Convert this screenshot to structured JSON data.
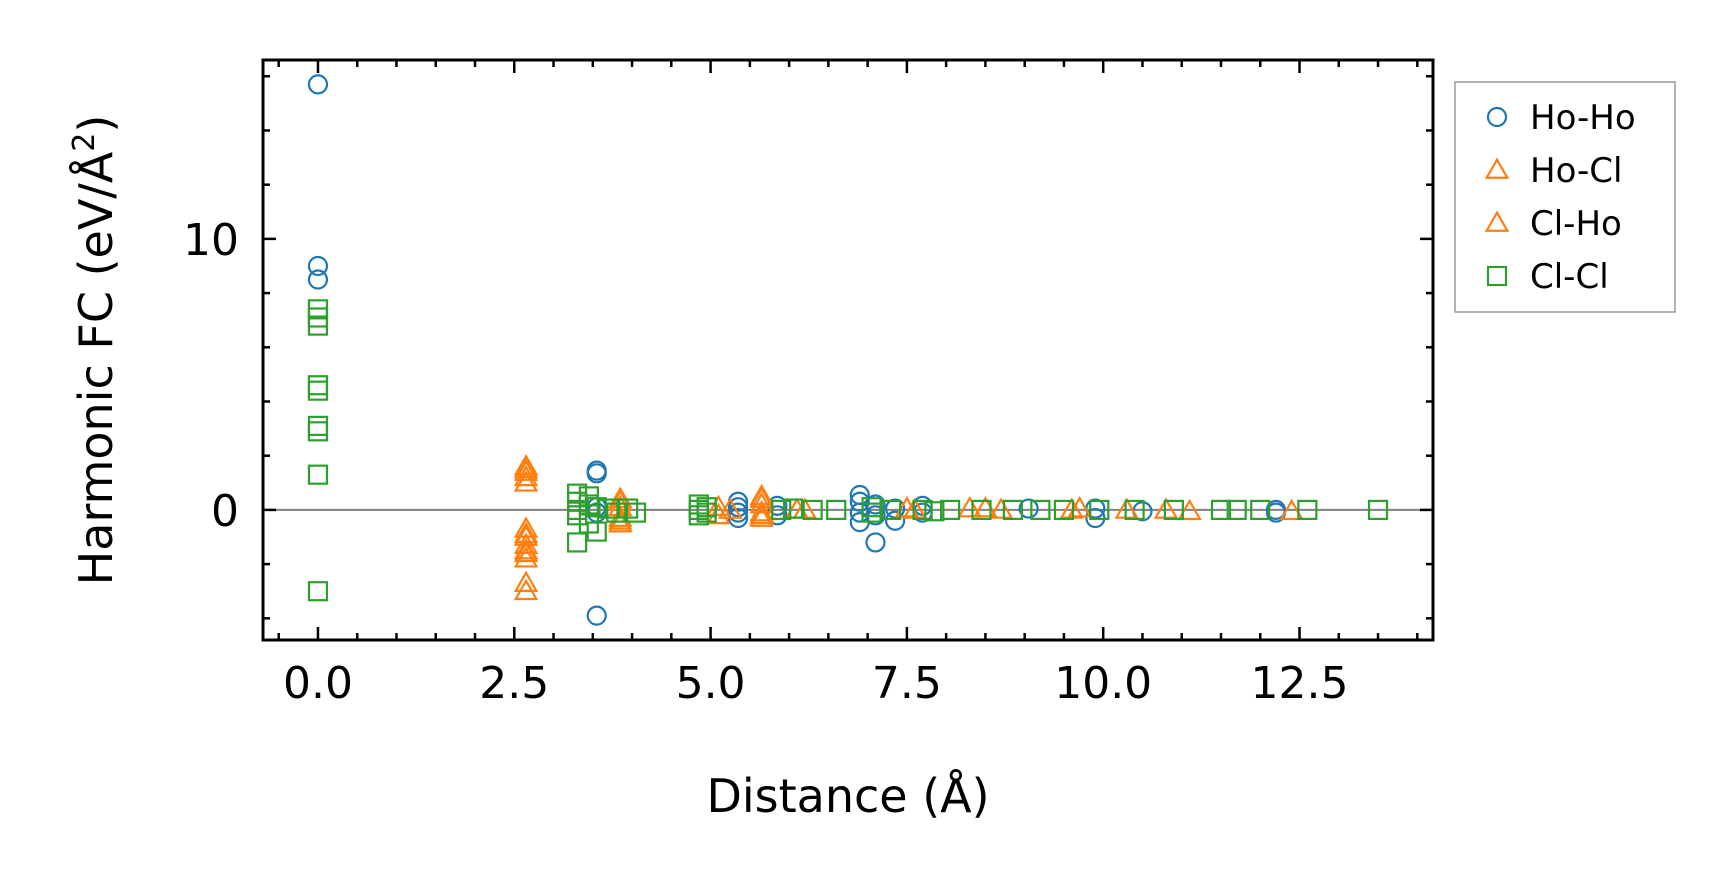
{
  "chart_data": {
    "type": "scatter",
    "xlabel": "Distance (Å)",
    "ylabel": "Harmonic FC (eV/Å²)",
    "ylabel_main": "Harmonic FC (eV/Å",
    "ylabel_sup": "2",
    "ylabel_end": ")",
    "xlim": [
      -0.7,
      14.2
    ],
    "ylim": [
      -4.8,
      16.6
    ],
    "xticks": [
      0.0,
      2.5,
      5.0,
      7.5,
      10.0,
      12.5
    ],
    "xtick_labels": [
      "0.0",
      "2.5",
      "5.0",
      "7.5",
      "10.0",
      "12.5"
    ],
    "yticks": [
      0,
      10
    ],
    "ytick_labels": [
      "0",
      "10"
    ],
    "reference_line_y": 0,
    "legend_position": "outside-right-top",
    "series": [
      {
        "name": "Ho-Ho",
        "marker": "circle",
        "color": "#1f77b4",
        "points": [
          [
            0.0,
            15.7
          ],
          [
            0.0,
            9.0
          ],
          [
            0.0,
            8.5
          ],
          [
            3.55,
            1.45
          ],
          [
            3.55,
            1.35
          ],
          [
            3.55,
            0.1
          ],
          [
            3.55,
            -0.1
          ],
          [
            3.55,
            -3.9
          ],
          [
            5.35,
            0.3
          ],
          [
            5.35,
            0.1
          ],
          [
            5.35,
            -0.1
          ],
          [
            5.35,
            -0.3
          ],
          [
            5.85,
            0.15
          ],
          [
            5.85,
            -0.2
          ],
          [
            6.9,
            0.55
          ],
          [
            6.9,
            0.3
          ],
          [
            6.9,
            -0.1
          ],
          [
            6.9,
            -0.45
          ],
          [
            7.1,
            0.2
          ],
          [
            7.1,
            -0.2
          ],
          [
            7.1,
            -1.2
          ],
          [
            7.35,
            0.05
          ],
          [
            7.35,
            -0.4
          ],
          [
            7.7,
            0.15
          ],
          [
            7.7,
            -0.1
          ],
          [
            9.05,
            0.05
          ],
          [
            9.9,
            0.05
          ],
          [
            9.9,
            -0.3
          ],
          [
            10.5,
            -0.05
          ],
          [
            12.2,
            0.0
          ],
          [
            12.2,
            -0.1
          ]
        ]
      },
      {
        "name": "Ho-Cl",
        "marker": "triangle",
        "color": "#ff7f0e",
        "points": [
          [
            2.65,
            1.6
          ],
          [
            2.65,
            1.4
          ],
          [
            2.65,
            1.2
          ],
          [
            2.65,
            1.0
          ],
          [
            2.65,
            -0.7
          ],
          [
            2.65,
            -1.0
          ],
          [
            2.65,
            -1.3
          ],
          [
            2.65,
            -1.6
          ],
          [
            2.65,
            -1.8
          ],
          [
            2.65,
            -2.7
          ],
          [
            2.65,
            -3.0
          ],
          [
            3.85,
            0.4
          ],
          [
            3.85,
            0.1
          ],
          [
            3.85,
            -0.3
          ],
          [
            3.85,
            -0.5
          ],
          [
            5.1,
            0.1
          ],
          [
            5.1,
            -0.2
          ],
          [
            5.25,
            0.0
          ],
          [
            5.65,
            0.5
          ],
          [
            5.65,
            0.2
          ],
          [
            5.65,
            -0.1
          ],
          [
            5.65,
            -0.3
          ],
          [
            6.2,
            0.0
          ],
          [
            7.5,
            0.05
          ],
          [
            8.3,
            0.05
          ],
          [
            8.7,
            0.0
          ],
          [
            9.7,
            0.05
          ],
          [
            10.3,
            0.0
          ],
          [
            11.1,
            -0.05
          ]
        ]
      },
      {
        "name": "Cl-Ho",
        "marker": "triangle",
        "color": "#ff7f0e",
        "points": [
          [
            2.65,
            1.5
          ],
          [
            2.65,
            -0.9
          ],
          [
            2.65,
            -1.5
          ],
          [
            3.85,
            0.3
          ],
          [
            3.85,
            -0.4
          ],
          [
            5.65,
            0.4
          ],
          [
            5.65,
            -0.2
          ],
          [
            6.1,
            0.0
          ],
          [
            7.6,
            0.0
          ],
          [
            8.5,
            0.05
          ],
          [
            9.6,
            0.0
          ],
          [
            10.8,
            0.0
          ],
          [
            12.4,
            -0.05
          ]
        ]
      },
      {
        "name": "Cl-Cl",
        "marker": "square",
        "color": "#2ca02c",
        "points": [
          [
            0.0,
            7.4
          ],
          [
            0.0,
            7.1
          ],
          [
            0.0,
            6.8
          ],
          [
            0.0,
            4.6
          ],
          [
            0.0,
            4.4
          ],
          [
            0.0,
            3.1
          ],
          [
            0.0,
            2.9
          ],
          [
            0.0,
            1.3
          ],
          [
            0.0,
            -3.0
          ],
          [
            3.3,
            0.6
          ],
          [
            3.3,
            0.3
          ],
          [
            3.3,
            0.0
          ],
          [
            3.3,
            -0.2
          ],
          [
            3.3,
            -1.2
          ],
          [
            3.45,
            0.5
          ],
          [
            3.45,
            0.2
          ],
          [
            3.45,
            -0.5
          ],
          [
            3.55,
            0.1
          ],
          [
            3.55,
            -0.8
          ],
          [
            3.7,
            0.05
          ],
          [
            3.8,
            -0.1
          ],
          [
            3.95,
            0.05
          ],
          [
            4.05,
            -0.1
          ],
          [
            4.85,
            0.2
          ],
          [
            4.85,
            0.0
          ],
          [
            4.85,
            -0.2
          ],
          [
            4.95,
            0.1
          ],
          [
            4.95,
            -0.1
          ],
          [
            5.9,
            0.0
          ],
          [
            6.05,
            0.05
          ],
          [
            6.3,
            0.0
          ],
          [
            6.6,
            0.0
          ],
          [
            7.05,
            0.1
          ],
          [
            7.05,
            -0.1
          ],
          [
            7.3,
            0.0
          ],
          [
            7.7,
            0.0
          ],
          [
            7.85,
            -0.05
          ],
          [
            8.05,
            0.0
          ],
          [
            8.45,
            0.0
          ],
          [
            8.85,
            0.0
          ],
          [
            9.2,
            0.0
          ],
          [
            9.5,
            0.0
          ],
          [
            9.95,
            0.0
          ],
          [
            10.4,
            0.0
          ],
          [
            10.9,
            0.0
          ],
          [
            11.5,
            0.0
          ],
          [
            11.7,
            0.0
          ],
          [
            12.0,
            0.0
          ],
          [
            12.6,
            0.0
          ],
          [
            13.5,
            0.0
          ]
        ]
      }
    ]
  }
}
